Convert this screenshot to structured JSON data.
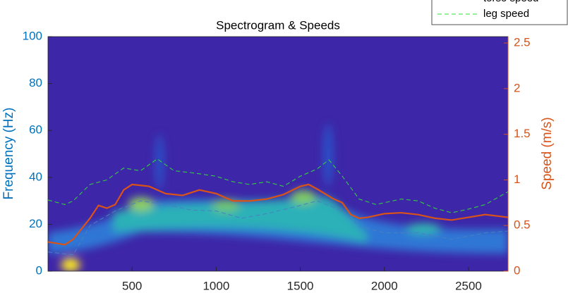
{
  "chart_data": {
    "type": "line",
    "title": "Spectrogram & Speeds",
    "ylabel": "Frequency (Hz)",
    "y2label": "Speed (m/s)",
    "xlim": [
      0,
      2735
    ],
    "xticks": [
      500,
      1000,
      1500,
      2000,
      2500
    ],
    "ylim": [
      0,
      100
    ],
    "yticks": [
      0,
      20,
      40,
      60,
      80,
      100
    ],
    "ycolor": "#0072bd",
    "y2lim": [
      0,
      2.57
    ],
    "y2ticks": [
      0,
      0.5,
      1,
      1.5,
      2,
      2.5
    ],
    "y2color": "#d95319",
    "legend": "top-right",
    "series": [
      {
        "name": "torso speed",
        "color": "#d95319",
        "axis": "y2",
        "dashed": false,
        "x": [
          0,
          100,
          150,
          250,
          300,
          350,
          400,
          450,
          500,
          600,
          700,
          800,
          900,
          1000,
          1100,
          1200,
          1300,
          1400,
          1500,
          1550,
          1600,
          1700,
          1750,
          1800,
          1850,
          1900,
          2000,
          2100,
          2200,
          2300,
          2400,
          2500,
          2600,
          2735
        ],
        "values": [
          0.32,
          0.29,
          0.35,
          0.58,
          0.72,
          0.69,
          0.73,
          0.89,
          0.95,
          0.93,
          0.85,
          0.83,
          0.89,
          0.85,
          0.77,
          0.77,
          0.79,
          0.84,
          0.93,
          0.95,
          0.9,
          0.79,
          0.75,
          0.62,
          0.58,
          0.59,
          0.63,
          0.64,
          0.62,
          0.58,
          0.56,
          0.59,
          0.62,
          0.59
        ]
      },
      {
        "name": "leg speed",
        "color": "#33dd33",
        "axis": "y2",
        "dashed": true,
        "x": [
          0,
          100,
          150,
          250,
          350,
          450,
          550,
          650,
          750,
          850,
          1000,
          1100,
          1200,
          1300,
          1400,
          1500,
          1600,
          1670,
          1750,
          1850,
          1950,
          2100,
          2200,
          2300,
          2400,
          2500,
          2600,
          2735
        ],
        "values": [
          0.78,
          0.73,
          0.77,
          0.95,
          1.0,
          1.13,
          1.1,
          1.23,
          1.1,
          1.08,
          1.04,
          0.98,
          0.95,
          0.98,
          0.93,
          1.04,
          1.12,
          1.22,
          1.04,
          0.79,
          0.73,
          0.79,
          0.77,
          0.69,
          0.64,
          0.68,
          0.73,
          0.87
        ]
      },
      {
        "color": "#4a7fc0",
        "axis": "y2",
        "dashed": true,
        "x": [
          0,
          150,
          250,
          400,
          550,
          700,
          850,
          1000,
          1150,
          1300,
          1500,
          1600,
          1750,
          1850,
          2000,
          2200,
          2400,
          2600,
          2735
        ],
        "values": [
          0.21,
          0.18,
          0.5,
          0.66,
          0.77,
          0.73,
          0.67,
          0.66,
          0.58,
          0.63,
          0.72,
          0.77,
          0.66,
          0.49,
          0.42,
          0.42,
          0.35,
          0.42,
          0.44
        ]
      }
    ]
  }
}
